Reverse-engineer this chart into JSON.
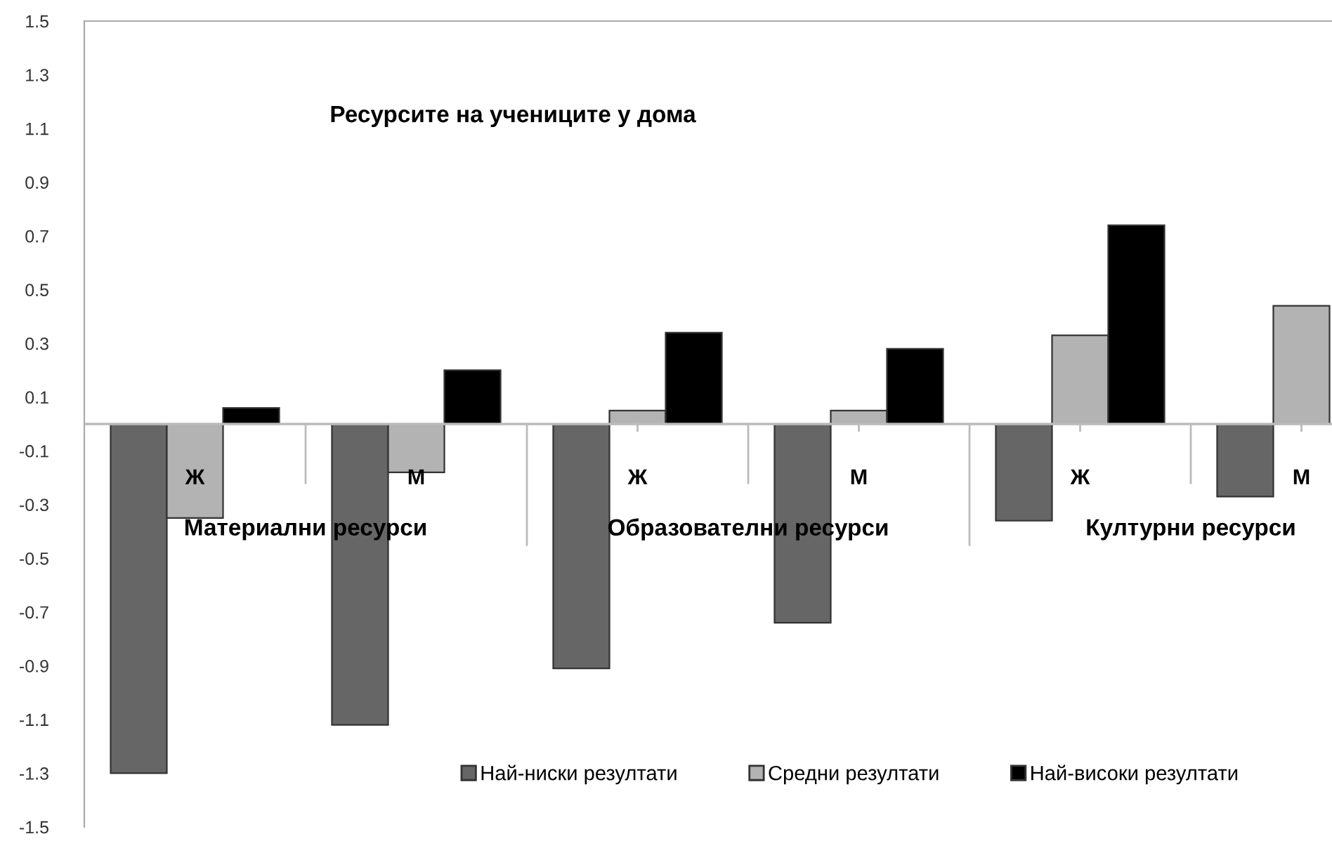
{
  "chart_data": {
    "type": "bar",
    "title": "Ресурсите на учениците у дома",
    "categories": [
      "Ж",
      "М",
      "Ж",
      "М",
      "Ж",
      "М"
    ],
    "annotations": [
      "Материални ресурси",
      "Образователни ресурси",
      "Културни ресурси"
    ],
    "series": [
      {
        "name": "Най-ниски резултати",
        "color": "#666666",
        "values": [
          -1.3,
          -1.12,
          -0.91,
          -0.74,
          -0.36,
          -0.27
        ]
      },
      {
        "name": "Средни резултати",
        "color": "#b3b3b3",
        "values": [
          -0.35,
          -0.18,
          0.05,
          0.05,
          0.33,
          0.44
        ]
      },
      {
        "name": "Най-високи резултати",
        "color": "#000000",
        "values": [
          0.06,
          0.2,
          0.34,
          0.28,
          0.74,
          null
        ]
      }
    ],
    "ylim": [
      -1.5,
      1.5
    ],
    "yticks": [
      -1.5,
      -1.3,
      -1.1,
      -0.9,
      -0.7,
      -0.5,
      -0.3,
      -0.1,
      0.1,
      0.3,
      0.5,
      0.7,
      0.9,
      1.1,
      1.3,
      1.5
    ],
    "grid": false,
    "legend": "bottom"
  }
}
